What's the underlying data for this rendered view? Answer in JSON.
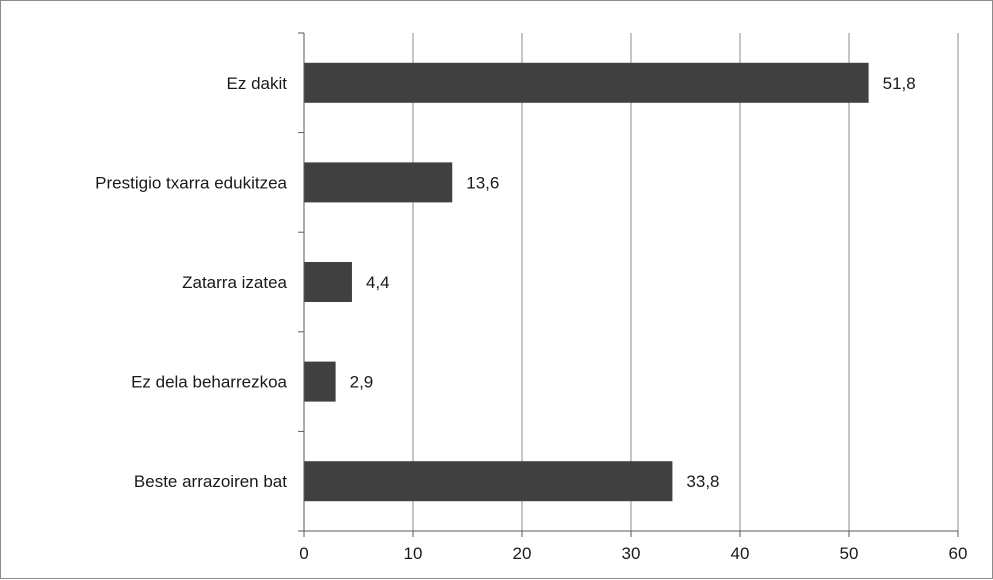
{
  "chart_data": {
    "type": "bar",
    "orientation": "horizontal",
    "categories": [
      "Ez dakit",
      "Prestigio txarra edukitzea",
      "Zatarra izatea",
      "Ez dela beharrezkoa",
      "Beste arrazoiren bat"
    ],
    "values": [
      51.8,
      13.6,
      4.4,
      2.9,
      33.8
    ],
    "value_labels": [
      "51,8",
      "13,6",
      "4,4",
      "2,9",
      "33,8"
    ],
    "xlim": [
      0,
      60
    ],
    "x_ticks": [
      0,
      10,
      20,
      30,
      40,
      50,
      60
    ],
    "title": "",
    "xlabel": "",
    "ylabel": "",
    "grid": "vertical",
    "legend": "none",
    "bar_color": "#404040",
    "grid_color": "#8c8c8c",
    "axis_color": "#595959"
  }
}
